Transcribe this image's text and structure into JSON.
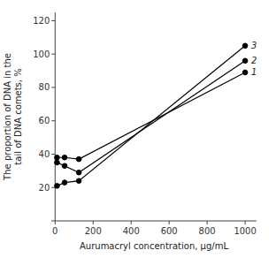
{
  "chart_data": {
    "type": "line",
    "x": [
      10,
      50,
      125,
      1000
    ],
    "series": [
      {
        "color": "#000000",
        "marker": "circle",
        "values": [
          38,
          38,
          37,
          89
        ]
      },
      {
        "color": "#000000",
        "marker": "circle",
        "values": [
          35,
          33,
          29,
          96
        ]
      },
      {
        "color": "#000000",
        "marker": "circle",
        "values": [
          21,
          23,
          24,
          105
        ]
      }
    ],
    "annotations": [
      {
        "text": "1",
        "x": 1000,
        "y": 89
      },
      {
        "text": "2",
        "x": 1000,
        "y": 96
      },
      {
        "text": "3",
        "x": 1000,
        "y": 105
      }
    ],
    "xlabel": "Aurumacryl concentration, μg/mL",
    "ylabel": "The proportion of DNA in the\ntail of DNA comets, %",
    "xlim": [
      -20,
      1060
    ],
    "ylim": [
      0,
      125
    ],
    "xticks": [
      0,
      200,
      400,
      600,
      800,
      1000
    ],
    "yticks": [
      20,
      40,
      60,
      80,
      100,
      120
    ],
    "grid": false
  }
}
